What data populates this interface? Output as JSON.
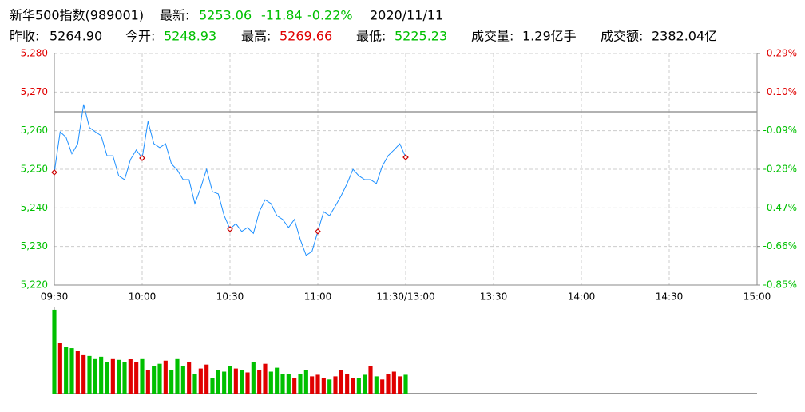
{
  "header": {
    "row1": [
      {
        "text": "新华500指数(989001)",
        "color": "#000000"
      },
      {
        "text": "最新:",
        "color": "#000000"
      },
      {
        "text": "5253.06",
        "color": "#00c000"
      },
      {
        "text": "-11.84",
        "color": "#00c000"
      },
      {
        "text": "-0.22%",
        "color": "#00c000"
      },
      {
        "text": "2020/11/11",
        "color": "#000000"
      }
    ],
    "row2": [
      {
        "text": "昨收:",
        "color": "#000000"
      },
      {
        "text": "5264.90",
        "color": "#000000"
      },
      {
        "text": "今开:",
        "color": "#000000"
      },
      {
        "text": "5248.93",
        "color": "#00c000"
      },
      {
        "text": "最高:",
        "color": "#000000"
      },
      {
        "text": "5269.66",
        "color": "#e00000"
      },
      {
        "text": "最低:",
        "color": "#000000"
      },
      {
        "text": "5225.23",
        "color": "#00c000"
      },
      {
        "text": "成交量:",
        "color": "#000000"
      },
      {
        "text": "1.29亿手",
        "color": "#000000"
      },
      {
        "text": "成交额:",
        "color": "#000000"
      },
      {
        "text": "2382.04亿",
        "color": "#000000"
      }
    ]
  },
  "chart_data": {
    "type": "line",
    "prev_close": 5264.9,
    "up_color": "#e00000",
    "down_color": "#00c000",
    "line_color": "#1e90ff",
    "prev_close_color": "#999999",
    "grid": true,
    "xlim": [
      0,
      240
    ],
    "xticks": [
      {
        "value": 0,
        "label": "09:30"
      },
      {
        "value": 30,
        "label": "10:00"
      },
      {
        "value": 60,
        "label": "10:30"
      },
      {
        "value": 90,
        "label": "11:00"
      },
      {
        "value": 120,
        "label": "11:30/13:00"
      },
      {
        "value": 150,
        "label": "13:30"
      },
      {
        "value": 180,
        "label": "14:00"
      },
      {
        "value": 210,
        "label": "14:30"
      },
      {
        "value": 240,
        "label": "15:00"
      }
    ],
    "ylim": [
      5220,
      5280
    ],
    "yticks": [
      {
        "value": 5220,
        "label": "5,220"
      },
      {
        "value": 5230,
        "label": "5,230"
      },
      {
        "value": 5240,
        "label": "5,240"
      },
      {
        "value": 5250,
        "label": "5,250"
      },
      {
        "value": 5260,
        "label": "5,260"
      },
      {
        "value": 5270,
        "label": "5,270"
      },
      {
        "value": 5280,
        "label": "5,280"
      }
    ],
    "y2lim": [
      -0.853,
      0.287
    ],
    "y2ticks": [
      {
        "value": -0.853,
        "label": "-0.85%"
      },
      {
        "value": -0.663,
        "label": "-0.66%"
      },
      {
        "value": -0.473,
        "label": "-0.47%"
      },
      {
        "value": -0.283,
        "label": "-0.28%"
      },
      {
        "value": -0.093,
        "label": "-0.09%"
      },
      {
        "value": 0.097,
        "label": "0.10%"
      },
      {
        "value": 0.287,
        "label": "0.29%"
      }
    ],
    "x": [
      0,
      2,
      4,
      6,
      8,
      10,
      12,
      14,
      16,
      18,
      20,
      22,
      24,
      26,
      28,
      30,
      32,
      34,
      36,
      38,
      40,
      42,
      44,
      46,
      48,
      50,
      52,
      54,
      56,
      58,
      60,
      62,
      64,
      66,
      68,
      70,
      72,
      74,
      76,
      78,
      80,
      82,
      84,
      86,
      88,
      90,
      92,
      94,
      96,
      98,
      100,
      102,
      104,
      106,
      108,
      110,
      112,
      114,
      116,
      118,
      120
    ],
    "values": [
      5249.2,
      5259.7,
      5258.3,
      5254,
      5256.6,
      5266.8,
      5260.8,
      5259.7,
      5258.7,
      5253.5,
      5253.5,
      5248.3,
      5247.3,
      5252.5,
      5255,
      5252.9,
      5262.4,
      5256.6,
      5255.6,
      5256.6,
      5251.4,
      5249.8,
      5247.3,
      5247.3,
      5241.1,
      5245.2,
      5250,
      5244.2,
      5243.6,
      5238,
      5234.5,
      5235.9,
      5233.9,
      5234.9,
      5233.4,
      5239,
      5242.1,
      5241.1,
      5238,
      5237,
      5234.9,
      5237,
      5231.8,
      5227.7,
      5228.7,
      5233.9,
      5239,
      5238,
      5240.5,
      5243.2,
      5246.3,
      5250,
      5248.3,
      5247.3,
      5247.3,
      5246.3,
      5250.8,
      5253.5,
      5255,
      5256.6,
      5253.1
    ],
    "volume": [
      107,
      65,
      60,
      58,
      55,
      50,
      48,
      45,
      47,
      40,
      45,
      43,
      40,
      44,
      40,
      45,
      30,
      35,
      38,
      42,
      30,
      45,
      35,
      40,
      25,
      32,
      37,
      20,
      30,
      28,
      35,
      32,
      30,
      27,
      40,
      30,
      38,
      28,
      33,
      25,
      25,
      20,
      25,
      30,
      22,
      24,
      20,
      18,
      22,
      30,
      25,
      20,
      20,
      24,
      35,
      22,
      18,
      25,
      28,
      22,
      24
    ],
    "volume_max": 110
  }
}
